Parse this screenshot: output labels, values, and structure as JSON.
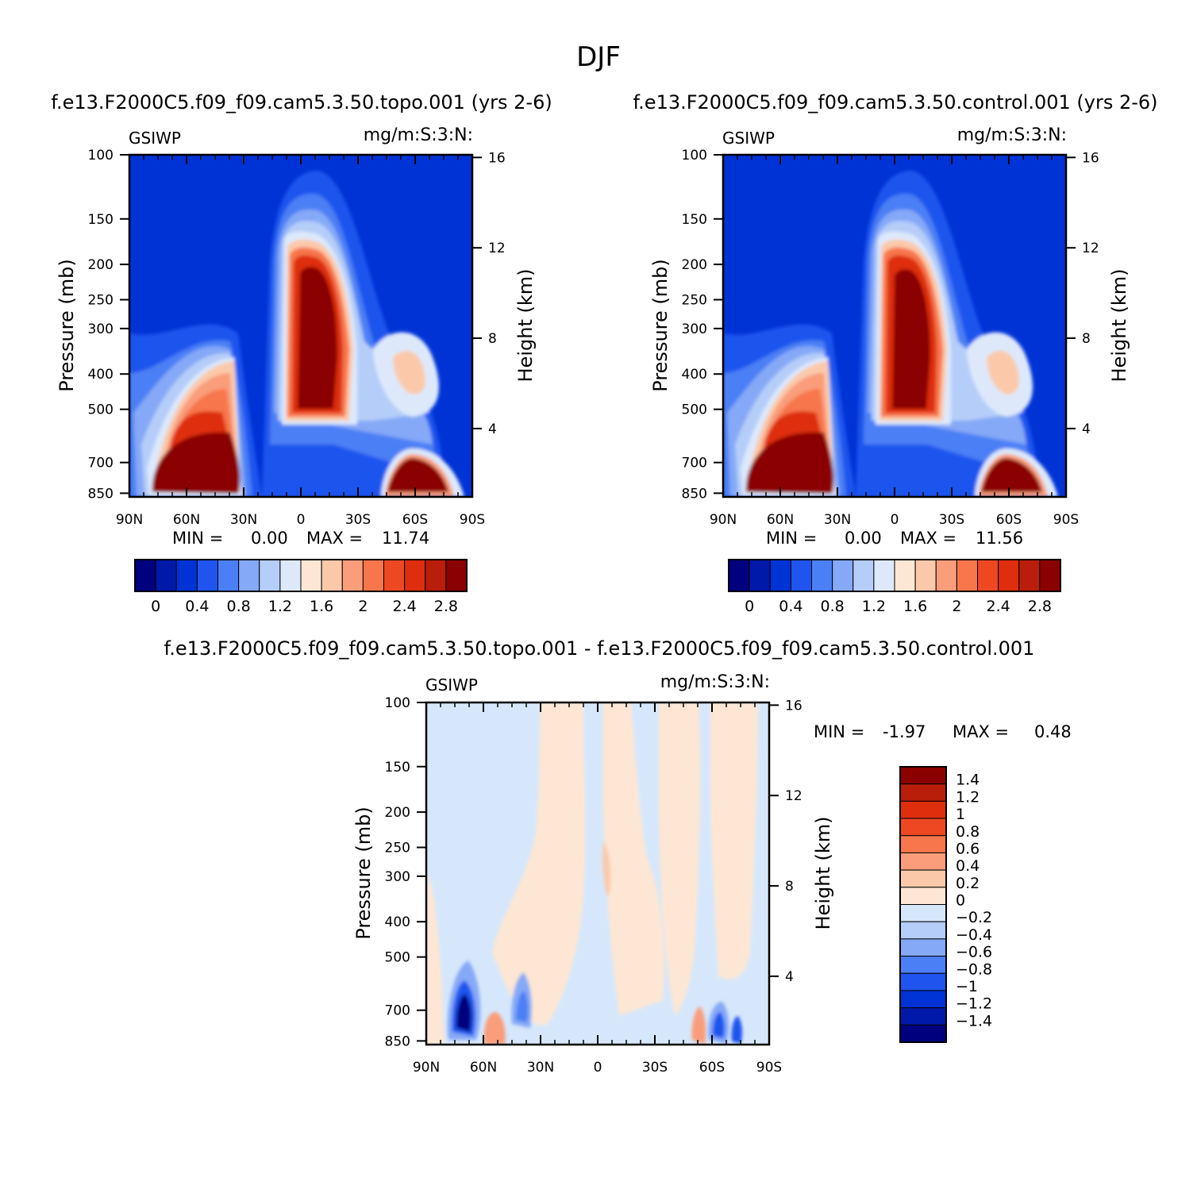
{
  "figure_title": "DJF",
  "chart_data": [
    {
      "type": "heatmap",
      "id": "topo",
      "title": "f.e13.F2000C5.f09_f09.cam5.3.50.topo.001  (yrs  2-6)",
      "variable": "GSIWP",
      "units": "mg/m:S:3:N:",
      "xlabel": "",
      "ylabel": "Pressure  (mb)",
      "right_ylabel": "Height  (km)",
      "x_ticks": [
        "90N",
        "60N",
        "30N",
        "0",
        "30S",
        "60S",
        "90S"
      ],
      "y_ticks": [
        100,
        150,
        200,
        250,
        300,
        400,
        500,
        700,
        850
      ],
      "right_ticks": [
        16,
        12,
        8,
        4
      ],
      "min_label": "MIN  =",
      "min_value": "0.00",
      "max_label": "MAX  =",
      "max_value": "11.74",
      "colorbar_labels": [
        "0",
        "0.4",
        "0.8",
        "1.2",
        "1.6",
        "2",
        "2.4",
        "2.8"
      ]
    },
    {
      "type": "heatmap",
      "id": "control",
      "title": "f.e13.F2000C5.f09_f09.cam5.3.50.control.001  (yrs  2-6)",
      "variable": "GSIWP",
      "units": "mg/m:S:3:N:",
      "xlabel": "",
      "ylabel": "Pressure  (mb)",
      "right_ylabel": "Height  (km)",
      "x_ticks": [
        "90N",
        "60N",
        "30N",
        "0",
        "30S",
        "60S",
        "90S"
      ],
      "y_ticks": [
        100,
        150,
        200,
        250,
        300,
        400,
        500,
        700,
        850
      ],
      "right_ticks": [
        16,
        12,
        8,
        4
      ],
      "min_label": "MIN  =",
      "min_value": "0.00",
      "max_label": "MAX  =",
      "max_value": "11.56",
      "colorbar_labels": [
        "0",
        "0.4",
        "0.8",
        "1.2",
        "1.6",
        "2",
        "2.4",
        "2.8"
      ]
    },
    {
      "type": "heatmap",
      "id": "diff",
      "title": "f.e13.F2000C5.f09_f09.cam5.3.50.topo.001  -  f.e13.F2000C5.f09_f09.cam5.3.50.control.001",
      "variable": "GSIWP",
      "units": "mg/m:S:3:N:",
      "xlabel": "",
      "ylabel": "Pressure  (mb)",
      "right_ylabel": "Height  (km)",
      "x_ticks": [
        "90N",
        "60N",
        "30N",
        "0",
        "30S",
        "60S",
        "90S"
      ],
      "y_ticks": [
        100,
        150,
        200,
        250,
        300,
        400,
        500,
        700,
        850
      ],
      "right_ticks": [
        16,
        12,
        8,
        4
      ],
      "min_label": "MIN  =",
      "min_value": "-1.97",
      "max_label": "MAX  =",
      "max_value": "0.48",
      "colorbar_labels": [
        "1.4",
        "1.2",
        "1",
        "0.8",
        "0.6",
        "0.4",
        "0.2",
        "0",
        "-0.2",
        "-0.4",
        "-0.6",
        "-0.8",
        "-1",
        "-1.2",
        "-1.4"
      ]
    }
  ],
  "palettes": {
    "abs": [
      "#00007f",
      "#0019a8",
      "#0033d6",
      "#1f55ee",
      "#4b7ff5",
      "#85a9f7",
      "#b5cdf9",
      "#dde9fb",
      "#fde7d4",
      "#fbc9aa",
      "#f99d7a",
      "#f7764b",
      "#ee4823",
      "#de2e0e",
      "#b91e0a",
      "#8b0000"
    ],
    "diff": [
      "#00007f",
      "#0019a8",
      "#0033d6",
      "#1f55ee",
      "#4b7ff5",
      "#85a9f7",
      "#b5cdf9",
      "#d6e7fb",
      "#fde7d4",
      "#fbc9aa",
      "#f99d7a",
      "#f7764b",
      "#ee4823",
      "#de2e0e",
      "#b91e0a",
      "#8b0000"
    ]
  }
}
